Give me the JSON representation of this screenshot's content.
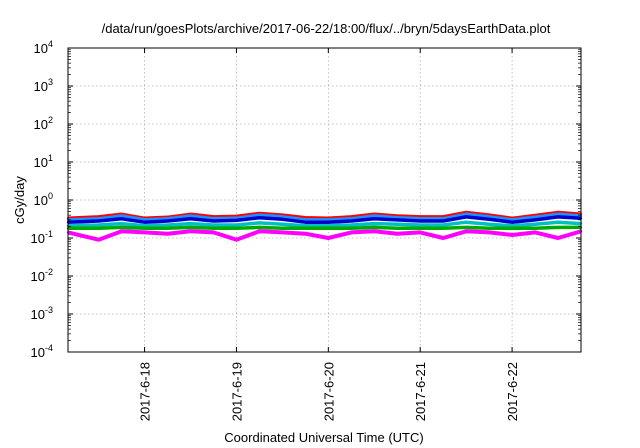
{
  "chart_data": {
    "type": "line",
    "title": "/data/run/goesPlots/archive/2017-06-22/18:00/flux/../bryn/5daysEarthData.plot",
    "xlabel": "Coordinated Universal Time (UTC)",
    "ylabel": "cGy/day",
    "yscale": "log",
    "ylim": [
      0.0001,
      10000
    ],
    "xlim": [
      "2017-06-17T04:00",
      "2017-06-22T18:00"
    ],
    "grid": true,
    "legend": "none",
    "y_ticks": [
      {
        "base": "10",
        "exp": "-4",
        "value": 0.0001
      },
      {
        "base": "10",
        "exp": "-3",
        "value": 0.001
      },
      {
        "base": "10",
        "exp": "-2",
        "value": 0.01
      },
      {
        "base": "10",
        "exp": "-1",
        "value": 0.1
      },
      {
        "base": "10",
        "exp": "0",
        "value": 1
      },
      {
        "base": "10",
        "exp": "1",
        "value": 10
      },
      {
        "base": "10",
        "exp": "2",
        "value": 100
      },
      {
        "base": "10",
        "exp": "3",
        "value": 1000
      },
      {
        "base": "10",
        "exp": "4",
        "value": 10000
      }
    ],
    "x_ticks": [
      {
        "label": "2017-6-18",
        "value": "2017-06-18T00:00"
      },
      {
        "label": "2017-6-19",
        "value": "2017-06-19T00:00"
      },
      {
        "label": "2017-6-20",
        "value": "2017-06-20T00:00"
      },
      {
        "label": "2017-6-21",
        "value": "2017-06-21T00:00"
      },
      {
        "label": "2017-6-22",
        "value": "2017-06-22T00:00"
      }
    ],
    "x": [
      "2017-06-17T04:00",
      "2017-06-17T12:00",
      "2017-06-17T18:00",
      "2017-06-18T00:00",
      "2017-06-18T06:00",
      "2017-06-18T12:00",
      "2017-06-18T18:00",
      "2017-06-19T00:00",
      "2017-06-19T06:00",
      "2017-06-19T12:00",
      "2017-06-19T18:00",
      "2017-06-20T00:00",
      "2017-06-20T06:00",
      "2017-06-20T12:00",
      "2017-06-20T18:00",
      "2017-06-21T00:00",
      "2017-06-21T06:00",
      "2017-06-21T12:00",
      "2017-06-21T18:00",
      "2017-06-22T00:00",
      "2017-06-22T06:00",
      "2017-06-22T12:00",
      "2017-06-22T18:00"
    ],
    "series": [
      {
        "color": "#ff0000",
        "values": [
          0.33,
          0.36,
          0.42,
          0.33,
          0.35,
          0.42,
          0.36,
          0.37,
          0.44,
          0.4,
          0.34,
          0.33,
          0.36,
          0.42,
          0.38,
          0.36,
          0.36,
          0.47,
          0.4,
          0.33,
          0.39,
          0.47,
          0.42
        ]
      },
      {
        "color": "#1e90ff",
        "values": [
          0.3,
          0.32,
          0.38,
          0.3,
          0.32,
          0.38,
          0.32,
          0.33,
          0.4,
          0.36,
          0.3,
          0.3,
          0.32,
          0.38,
          0.34,
          0.32,
          0.32,
          0.42,
          0.36,
          0.3,
          0.35,
          0.42,
          0.38
        ]
      },
      {
        "color": "#0000cd",
        "values": [
          0.26,
          0.28,
          0.32,
          0.26,
          0.28,
          0.32,
          0.28,
          0.29,
          0.34,
          0.31,
          0.26,
          0.26,
          0.28,
          0.32,
          0.3,
          0.28,
          0.28,
          0.36,
          0.31,
          0.26,
          0.3,
          0.36,
          0.33
        ]
      },
      {
        "color": "#00c0c0",
        "values": [
          0.21,
          0.22,
          0.24,
          0.21,
          0.22,
          0.24,
          0.22,
          0.22,
          0.25,
          0.23,
          0.21,
          0.21,
          0.22,
          0.24,
          0.23,
          0.22,
          0.22,
          0.26,
          0.23,
          0.21,
          0.23,
          0.26,
          0.24
        ]
      },
      {
        "color": "#00aa00",
        "values": [
          0.18,
          0.18,
          0.19,
          0.18,
          0.18,
          0.19,
          0.18,
          0.18,
          0.19,
          0.18,
          0.18,
          0.18,
          0.18,
          0.19,
          0.18,
          0.18,
          0.18,
          0.19,
          0.18,
          0.18,
          0.18,
          0.19,
          0.19
        ]
      },
      {
        "color": "#ff00ff",
        "values": [
          0.14,
          0.09,
          0.15,
          0.14,
          0.13,
          0.15,
          0.14,
          0.09,
          0.15,
          0.14,
          0.13,
          0.1,
          0.14,
          0.15,
          0.13,
          0.14,
          0.1,
          0.15,
          0.14,
          0.12,
          0.14,
          0.1,
          0.15
        ]
      }
    ]
  }
}
